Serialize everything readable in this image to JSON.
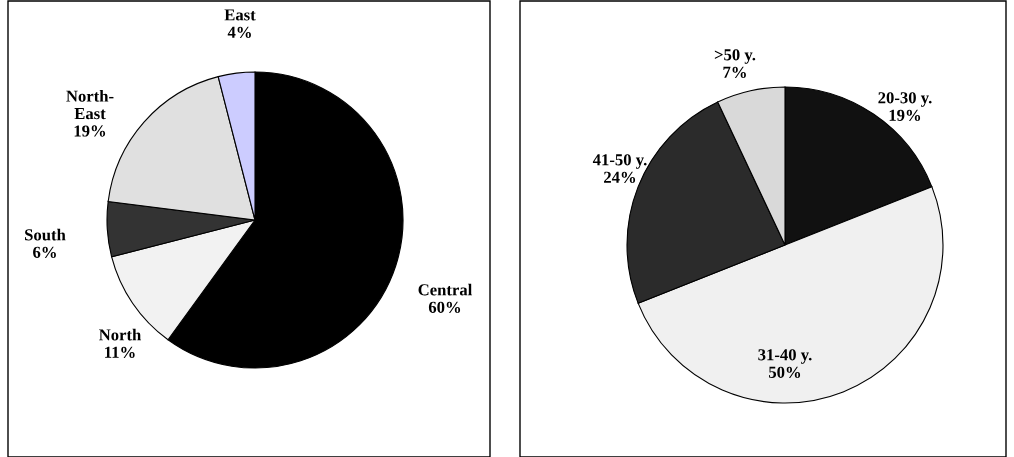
{
  "chart_data": [
    {
      "type": "pie",
      "categories": [
        "Central",
        "North",
        "South",
        "North-\nEast",
        "East"
      ],
      "values": [
        60,
        11,
        6,
        19,
        4
      ],
      "colors": [
        "#000000",
        "#f2f2f2",
        "#333333",
        "#e0e0e0",
        "#ccccff"
      ],
      "value_labels": [
        "60%",
        "11%",
        "6%",
        "19%",
        "4%"
      ]
    },
    {
      "type": "pie",
      "categories": [
        "20-30 y.",
        "31-40 y.",
        "41-50 y.",
        ">50 y."
      ],
      "values": [
        19,
        50,
        24,
        7
      ],
      "colors": [
        "#111111",
        "#f0f0f0",
        "#2b2b2b",
        "#d9d9d9"
      ],
      "value_labels": [
        "19%",
        "50%",
        "24%",
        "7%"
      ]
    }
  ]
}
